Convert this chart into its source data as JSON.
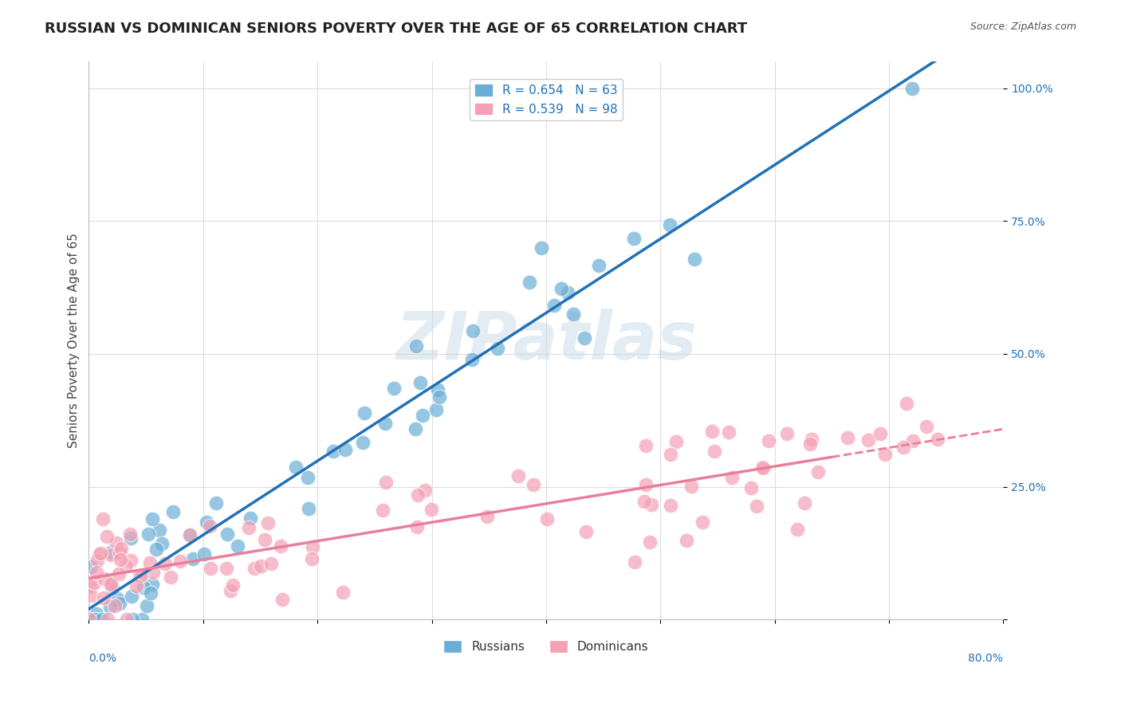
{
  "title": "RUSSIAN VS DOMINICAN SENIORS POVERTY OVER THE AGE OF 65 CORRELATION CHART",
  "source": "Source: ZipAtlas.com",
  "ylabel": "Seniors Poverty Over the Age of 65",
  "xlim": [
    0.0,
    0.8
  ],
  "ylim": [
    0.0,
    1.05
  ],
  "ytick_vals": [
    0.0,
    0.25,
    0.5,
    0.75,
    1.0
  ],
  "ytick_labels": [
    "",
    "25.0%",
    "50.0%",
    "75.0%",
    "100.0%"
  ],
  "russian_R": 0.654,
  "russian_N": 63,
  "dominican_R": 0.539,
  "dominican_N": 98,
  "blue_color": "#6aaed6",
  "pink_color": "#f4a0b5",
  "blue_line_color": "#2171b5",
  "pink_line_color": "#e87f9b",
  "legend_text_color": "#2171b5",
  "watermark": "ZIPatlas",
  "watermark_color": "#c8d8e8",
  "background_color": "#ffffff",
  "title_fontsize": 13,
  "label_fontsize": 11
}
